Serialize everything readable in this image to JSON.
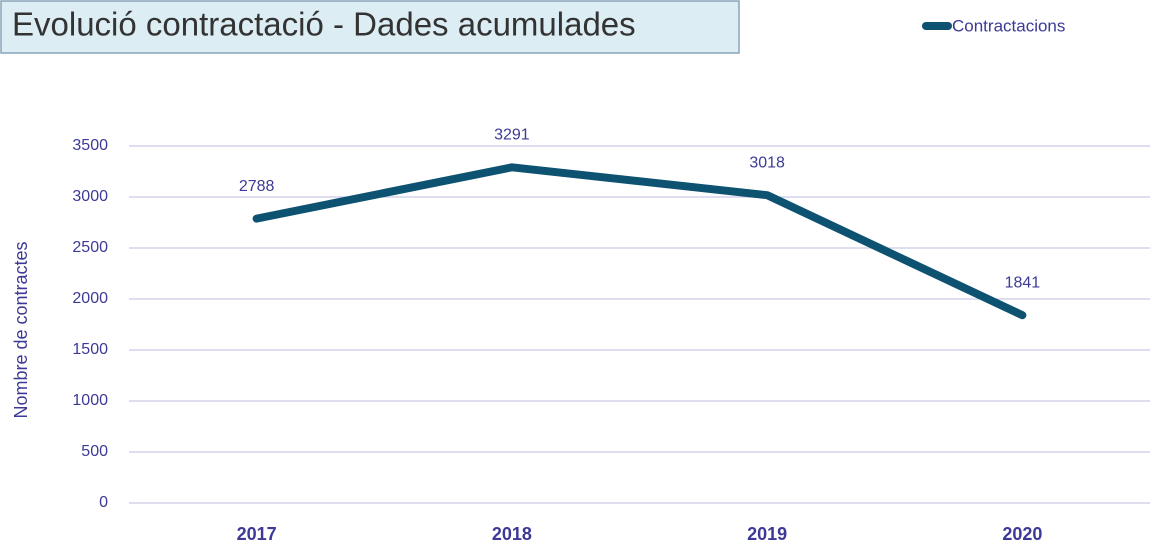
{
  "chart_data": {
    "type": "line",
    "title": "Evolució contractació - Dades acumulades",
    "y_label": "Nombre de contractes",
    "categories": [
      "2017",
      "2018",
      "2019",
      "2020"
    ],
    "series": [
      {
        "name": "Contractacions",
        "color": "#0e5272",
        "values": [
          2788,
          3291,
          3018,
          1841
        ]
      }
    ],
    "ylim": [
      0,
      3500
    ],
    "yticks": [
      0,
      500,
      1000,
      1500,
      2000,
      2500,
      3000,
      3500
    ],
    "grid": true,
    "data_labels": true,
    "legend": "top-right"
  }
}
